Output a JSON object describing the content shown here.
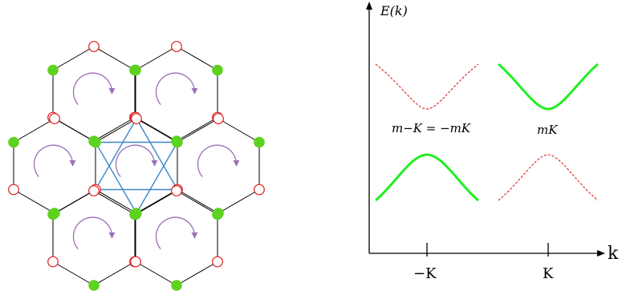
{
  "plot": {
    "ylabel": "E(k)",
    "xlabel": "k",
    "tick_left": "−K",
    "tick_right": "K",
    "mass_left": "m−K = −mK",
    "mass_right": "mK"
  },
  "colors": {
    "site_a": "#e01b1b",
    "site_b": "#5dd21f",
    "flux": "#9b6fb8",
    "nnn": "#3a86c8",
    "band_solid": "#22ee22"
  },
  "lattice": {
    "flux_count": 7,
    "flux_direction": "clockwise"
  }
}
